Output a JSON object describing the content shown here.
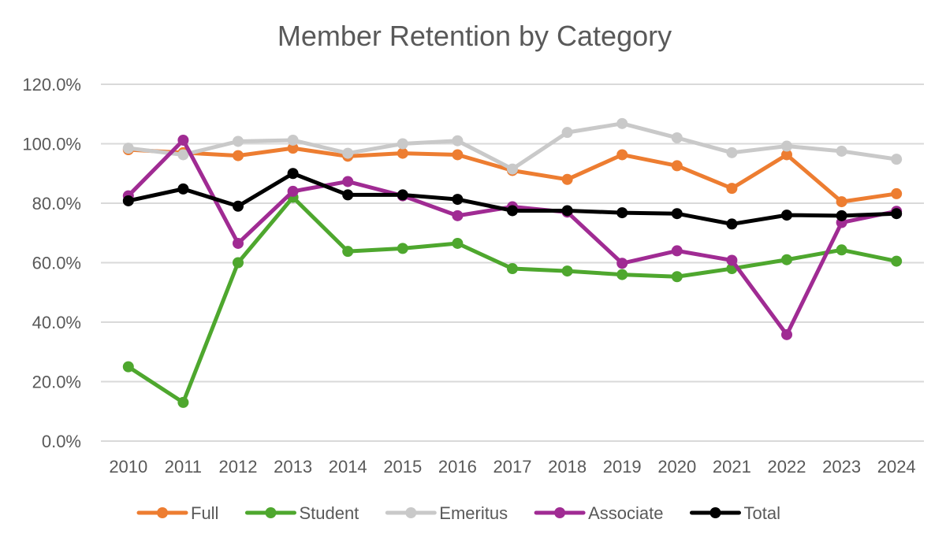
{
  "chart_data": {
    "type": "line",
    "title": "Member Retention by Category",
    "xlabel": "",
    "ylabel": "",
    "ylim": [
      0,
      120
    ],
    "y_ticks": [
      "0.0%",
      "20.0%",
      "40.0%",
      "60.0%",
      "80.0%",
      "100.0%",
      "120.0%"
    ],
    "y_tick_values": [
      0,
      20,
      40,
      60,
      80,
      100,
      120
    ],
    "categories": [
      "2010",
      "2011",
      "2012",
      "2013",
      "2014",
      "2015",
      "2016",
      "2017",
      "2018",
      "2019",
      "2020",
      "2021",
      "2022",
      "2023",
      "2024"
    ],
    "grid": true,
    "legend_position": "bottom",
    "series": [
      {
        "name": "Full",
        "color": "#ed7d31",
        "values": [
          98.0,
          97.0,
          96.0,
          98.5,
          95.8,
          96.8,
          96.3,
          91.0,
          88.0,
          96.3,
          92.6,
          85.0,
          96.3,
          80.5,
          83.2
        ]
      },
      {
        "name": "Student",
        "color": "#4ea72e",
        "values": [
          25.0,
          13.0,
          60.0,
          82.0,
          63.8,
          64.8,
          66.5,
          58.0,
          57.2,
          56.0,
          55.3,
          58.0,
          61.0,
          64.3,
          60.5
        ]
      },
      {
        "name": "Emeritus",
        "color": "#c9c9c9",
        "values": [
          98.5,
          96.3,
          100.8,
          101.2,
          96.8,
          100.0,
          101.0,
          91.5,
          103.8,
          106.8,
          102.0,
          97.0,
          99.2,
          97.5,
          94.8
        ]
      },
      {
        "name": "Associate",
        "color": "#a02b93",
        "values": [
          82.5,
          101.2,
          66.5,
          84.0,
          87.3,
          82.5,
          75.8,
          78.8,
          77.0,
          59.8,
          64.0,
          60.8,
          35.8,
          73.5,
          77.3
        ]
      },
      {
        "name": "Total",
        "color": "#000000",
        "values": [
          80.8,
          84.8,
          79.0,
          90.0,
          82.8,
          82.8,
          81.3,
          77.5,
          77.5,
          76.8,
          76.5,
          73.0,
          76.0,
          75.8,
          76.5
        ]
      }
    ]
  }
}
